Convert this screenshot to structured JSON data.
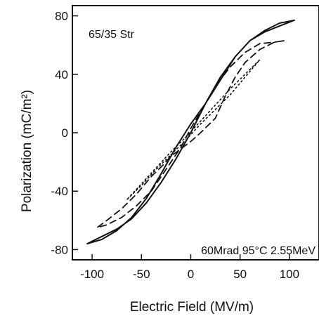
{
  "chart_data": {
    "type": "line",
    "xlabel": "Electric Field (MV/m)",
    "ylabel": "Polarization (mC/m²)",
    "xlim": [
      -120,
      130
    ],
    "ylim": [
      -87,
      87
    ],
    "xticks": [
      -100,
      -50,
      0,
      50,
      100
    ],
    "yticks": [
      -80,
      -40,
      0,
      40,
      80
    ],
    "xtick_labels": [
      "-100",
      "-50",
      "0",
      "50",
      "100"
    ],
    "ytick_labels": [
      "-80",
      "-40",
      "0",
      "40",
      "80"
    ],
    "grid": false,
    "annotations": [
      {
        "text": "65/35 Str",
        "position": "top-left"
      },
      {
        "text": "60Mrad 95°C 2.55MeV",
        "position": "bottom-right"
      }
    ],
    "series": [
      {
        "style": "solid",
        "x": [
          -105,
          -90,
          -75,
          -60,
          -45,
          -30,
          -15,
          0,
          15,
          30,
          45,
          60,
          75,
          90,
          105,
          90,
          75,
          60,
          45,
          30,
          15,
          0,
          -15,
          -30,
          -45,
          -60,
          -75,
          -90,
          -105
        ],
        "y": [
          -76,
          -73,
          -67,
          -58,
          -45,
          -28,
          -10,
          6,
          20,
          36,
          52,
          63,
          69,
          73,
          77,
          75,
          70,
          63,
          52,
          38,
          20,
          0,
          -18,
          -34,
          -48,
          -59,
          -66,
          -71,
          -76
        ]
      },
      {
        "style": "dashed",
        "x": [
          -28,
          -40,
          -55,
          -70,
          -85,
          -95,
          -85,
          -70,
          -55,
          -40,
          -25,
          -10,
          0,
          15,
          25,
          25,
          40,
          55,
          70,
          85,
          95,
          85,
          70,
          55,
          45,
          35,
          25,
          10,
          0,
          -10,
          -20,
          -28
        ],
        "y": [
          -22,
          -30,
          -42,
          -52,
          -60,
          -65,
          -63,
          -58,
          -50,
          -40,
          -25,
          -10,
          3,
          20,
          32,
          32,
          45,
          55,
          61,
          62,
          63,
          62,
          57,
          48,
          38,
          25,
          10,
          0,
          -6,
          -11,
          -16,
          -22
        ]
      },
      {
        "style": "dotted",
        "x": [
          -20,
          -5,
          10,
          25,
          40,
          55,
          70,
          55,
          40,
          25,
          10,
          -5,
          -20,
          -35,
          -50,
          -65,
          -50,
          -35,
          -20
        ],
        "y": [
          -15,
          -5,
          6,
          16,
          26,
          38,
          50,
          40,
          30,
          19,
          8,
          -3,
          -13,
          -24,
          -35,
          -46,
          -36,
          -25,
          -15
        ]
      }
    ]
  }
}
